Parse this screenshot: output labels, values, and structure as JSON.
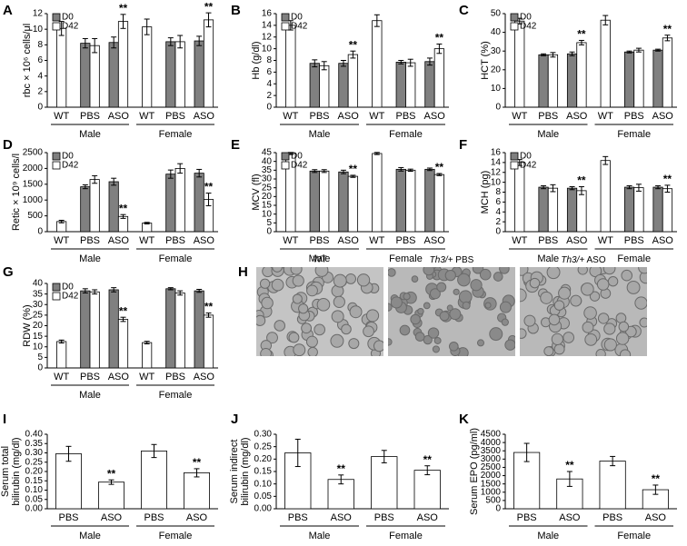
{
  "chart_data": [
    {
      "type": "bar",
      "panel": "A",
      "ylabel": [
        "rbc × 10⁶ cells/μl"
      ],
      "categories": [
        "WT",
        "PBS",
        "ASO",
        "WT",
        "PBS",
        "ASO"
      ],
      "groups": [
        "Male",
        "Female"
      ],
      "ylim": [
        0,
        12
      ],
      "yticks": [
        0,
        2,
        4,
        6,
        8,
        10,
        12
      ],
      "series": [
        {
          "name": "D0",
          "color": "#808080",
          "values": [
            null,
            8.2,
            8.3,
            null,
            8.4,
            8.5
          ],
          "errors": [
            null,
            0.6,
            0.7,
            null,
            0.5,
            0.6
          ]
        },
        {
          "name": "D42",
          "color": "#ffffff",
          "values": [
            10.1,
            7.9,
            11,
            10.3,
            8.4,
            11.2
          ],
          "errors": [
            0.9,
            0.9,
            0.9,
            1.0,
            0.8,
            0.9
          ],
          "annotations": [
            null,
            null,
            "**",
            null,
            null,
            "**"
          ]
        }
      ]
    },
    {
      "type": "bar",
      "panel": "B",
      "ylabel": [
        "Hb (g/dl)"
      ],
      "categories": [
        "WT",
        "PBS",
        "ASO",
        "WT",
        "PBS",
        "ASO"
      ],
      "groups": [
        "Male",
        "Female"
      ],
      "ylim": [
        0,
        16
      ],
      "yticks": [
        0,
        2,
        4,
        6,
        8,
        10,
        12,
        14,
        16
      ],
      "series": [
        {
          "name": "D0",
          "color": "#808080",
          "values": [
            null,
            7.5,
            7.5,
            null,
            7.7,
            7.8
          ],
          "errors": [
            null,
            0.6,
            0.5,
            null,
            0.3,
            0.6
          ]
        },
        {
          "name": "D42",
          "color": "#ffffff",
          "values": [
            14,
            7.1,
            9,
            14.8,
            7.6,
            10
          ],
          "errors": [
            0.8,
            0.7,
            0.6,
            1.0,
            0.6,
            0.8
          ],
          "annotations": [
            null,
            null,
            "**",
            null,
            null,
            "**"
          ]
        }
      ]
    },
    {
      "type": "bar",
      "panel": "C",
      "ylabel": [
        "HCT (%)"
      ],
      "categories": [
        "WT",
        "PBS",
        "ASO",
        "WT",
        "PBS",
        "ASO"
      ],
      "groups": [
        "Male",
        "Female"
      ],
      "ylim": [
        0,
        50
      ],
      "yticks": [
        0,
        10,
        20,
        30,
        40,
        50
      ],
      "series": [
        {
          "name": "D0",
          "color": "#808080",
          "values": [
            null,
            28,
            28.5,
            null,
            29.5,
            30.5
          ],
          "errors": [
            null,
            0.5,
            1,
            null,
            0.5,
            0.5
          ]
        },
        {
          "name": "D42",
          "color": "#ffffff",
          "values": [
            46,
            28,
            34.5,
            46.5,
            30.5,
            37
          ],
          "errors": [
            1.5,
            1.2,
            1.2,
            2.5,
            1,
            1.5
          ],
          "annotations": [
            null,
            null,
            "**",
            null,
            null,
            "**"
          ]
        }
      ]
    },
    {
      "type": "bar",
      "panel": "D",
      "ylabel": [
        "Retic × 10⁹ cells/l"
      ],
      "categories": [
        "WT",
        "PBS",
        "ASO",
        "WT",
        "PBS",
        "ASO"
      ],
      "groups": [
        "Male",
        "Female"
      ],
      "ylim": [
        0,
        2500
      ],
      "yticks": [
        0,
        500,
        1000,
        1500,
        2000,
        2500
      ],
      "series": [
        {
          "name": "D0",
          "color": "#808080",
          "values": [
            null,
            1420,
            1580,
            null,
            1820,
            1850
          ],
          "errors": [
            null,
            60,
            110,
            null,
            130,
            120
          ]
        },
        {
          "name": "D42",
          "color": "#ffffff",
          "values": [
            320,
            1650,
            480,
            270,
            2000,
            1020
          ],
          "errors": [
            40,
            120,
            60,
            25,
            150,
            200
          ],
          "annotations": [
            null,
            null,
            "**",
            null,
            null,
            "**"
          ]
        }
      ]
    },
    {
      "type": "bar",
      "panel": "E",
      "ylabel": [
        "MCV (fl)"
      ],
      "categories": [
        "WT",
        "PBS",
        "ASO",
        "WT",
        "PBS",
        "ASO"
      ],
      "groups": [
        "Male",
        "Female"
      ],
      "ylim": [
        0,
        45
      ],
      "yticks": [
        0,
        5,
        10,
        15,
        20,
        25,
        30,
        35,
        40,
        45
      ],
      "series": [
        {
          "name": "D0",
          "color": "#808080",
          "values": [
            null,
            34.5,
            34,
            null,
            35.5,
            35.5
          ],
          "errors": [
            null,
            0.8,
            1,
            null,
            1,
            0.7
          ]
        },
        {
          "name": "D42",
          "color": "#ffffff",
          "values": [
            44.5,
            34.5,
            31.5,
            44.5,
            35,
            32.5
          ],
          "errors": [
            0.6,
            0.8,
            0.6,
            0.6,
            0.6,
            0.6
          ],
          "annotations": [
            null,
            null,
            "**",
            null,
            null,
            "**"
          ]
        }
      ]
    },
    {
      "type": "bar",
      "panel": "F",
      "ylabel": [
        "MCH (pg)"
      ],
      "categories": [
        "WT",
        "PBS",
        "ASO",
        "WT",
        "PBS",
        "ASO"
      ],
      "groups": [
        "Male",
        "Female"
      ],
      "ylim": [
        0,
        16
      ],
      "yticks": [
        0,
        2,
        4,
        6,
        8,
        10,
        12,
        14,
        16
      ],
      "series": [
        {
          "name": "D0",
          "color": "#808080",
          "values": [
            null,
            9,
            8.8,
            null,
            9,
            9
          ],
          "errors": [
            null,
            0.3,
            0.3,
            null,
            0.3,
            0.3
          ]
        },
        {
          "name": "D42",
          "color": "#ffffff",
          "values": [
            14,
            8.8,
            8.3,
            14.4,
            8.9,
            8.7
          ],
          "errors": [
            0.6,
            0.7,
            0.8,
            0.8,
            0.7,
            0.7
          ],
          "annotations": [
            null,
            null,
            "**",
            null,
            null,
            "**"
          ]
        }
      ]
    },
    {
      "type": "bar",
      "panel": "G",
      "ylabel": [
        "RDW (%)"
      ],
      "categories": [
        "WT",
        "PBS",
        "ASO",
        "WT",
        "PBS",
        "ASO"
      ],
      "groups": [
        "Male",
        "Female"
      ],
      "ylim": [
        0,
        40
      ],
      "yticks": [
        0,
        5,
        10,
        15,
        20,
        25,
        30,
        35,
        40
      ],
      "series": [
        {
          "name": "D0",
          "color": "#808080",
          "values": [
            null,
            36.5,
            37,
            null,
            37.5,
            36.5
          ],
          "errors": [
            null,
            1,
            1,
            null,
            0.5,
            0.7
          ]
        },
        {
          "name": "D42",
          "color": "#ffffff",
          "values": [
            12.5,
            36,
            23,
            12,
            35.5,
            25
          ],
          "errors": [
            0.7,
            1,
            1,
            0.6,
            1,
            1
          ],
          "annotations": [
            null,
            null,
            "**",
            null,
            null,
            "**"
          ]
        }
      ]
    },
    {
      "type": "bar",
      "panel": "I",
      "ylabel": [
        "Serum total",
        "bilirubin (mg/dl)"
      ],
      "categories": [
        "PBS",
        "ASO",
        "PBS",
        "ASO"
      ],
      "groups": [
        "Male",
        "Female"
      ],
      "ylim": [
        0,
        0.4
      ],
      "yticks": [
        {
          "value": 0,
          "label": "0.00"
        },
        {
          "value": 0.05,
          "label": "0.05"
        },
        {
          "value": 0.1,
          "label": "0.10"
        },
        {
          "value": 0.15,
          "label": "0.15"
        },
        {
          "value": 0.2,
          "label": "0.20"
        },
        {
          "value": 0.25,
          "label": "0.25"
        },
        {
          "value": 0.3,
          "label": "0.30"
        },
        {
          "value": 0.35,
          "label": "0.35"
        },
        {
          "value": 0.4,
          "label": "0.40"
        }
      ],
      "series": [
        {
          "color": "#ffffff",
          "values": [
            0.295,
            0.143,
            0.31,
            0.193
          ],
          "errors": [
            0.04,
            0.012,
            0.035,
            0.022
          ],
          "annotations": [
            null,
            "**",
            null,
            "**"
          ]
        }
      ]
    },
    {
      "type": "bar",
      "panel": "J",
      "ylabel": [
        "Serum indirect",
        "bilirubin (mg/dl)"
      ],
      "categories": [
        "PBS",
        "ASO",
        "PBS",
        "ASO"
      ],
      "groups": [
        "Male",
        "Female"
      ],
      "ylim": [
        0,
        0.3
      ],
      "yticks": [
        {
          "value": 0,
          "label": "0.00"
        },
        {
          "value": 0.05,
          "label": "0.05"
        },
        {
          "value": 0.1,
          "label": "0.10"
        },
        {
          "value": 0.15,
          "label": "0.15"
        },
        {
          "value": 0.2,
          "label": "0.20"
        },
        {
          "value": 0.25,
          "label": "0.25"
        },
        {
          "value": 0.3,
          "label": "0.30"
        }
      ],
      "series": [
        {
          "color": "#ffffff",
          "values": [
            0.225,
            0.118,
            0.21,
            0.155
          ],
          "errors": [
            0.055,
            0.018,
            0.025,
            0.018
          ],
          "annotations": [
            null,
            "**",
            null,
            "**"
          ]
        }
      ]
    },
    {
      "type": "bar",
      "panel": "K",
      "ylabel": [
        "Serum EPO (pg/ml)"
      ],
      "categories": [
        "PBS",
        "ASO",
        "PBS",
        "ASO"
      ],
      "groups": [
        "Male",
        "Female"
      ],
      "ylim": [
        0,
        4500
      ],
      "yticks": [
        0,
        500,
        1000,
        1500,
        2000,
        2500,
        3000,
        3500,
        4000,
        4500
      ],
      "series": [
        {
          "color": "#ffffff",
          "values": [
            3400,
            1800,
            2880,
            1150
          ],
          "errors": [
            550,
            450,
            280,
            280
          ],
          "annotations": [
            null,
            "**",
            null,
            "**"
          ]
        }
      ]
    }
  ],
  "micrographs": {
    "panel": "H",
    "images": [
      {
        "label": "WT"
      },
      {
        "genotype": "Th3/+",
        "treatment": "PBS"
      },
      {
        "genotype": "Th3/+",
        "treatment": "ASO"
      }
    ]
  }
}
